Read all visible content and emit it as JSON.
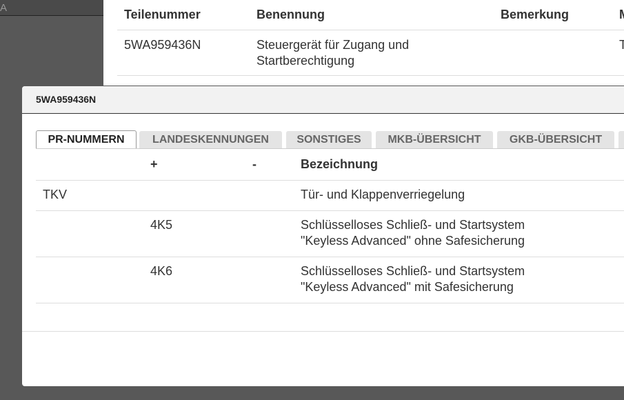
{
  "background_field": {
    "text": "A"
  },
  "background_table": {
    "headers": [
      "Teilenummer",
      "Benennung",
      "Bemerkung",
      "M"
    ],
    "row": {
      "part_number": "5WA959436N",
      "name": [
        "Steuergerät für Zugang und",
        "Startberechtigung"
      ],
      "last": "T"
    }
  },
  "dialog": {
    "title": "5WA959436N",
    "tabs": [
      "PR-NUMMERN",
      "LANDESKENNUNGEN",
      "SONSTIGES",
      "MKB-ÜBERSICHT",
      "GKB-ÜBERSICHT"
    ],
    "table": {
      "headers": {
        "plus": "+",
        "minus": "-",
        "description": "Bezeichnung"
      },
      "rows": [
        {
          "code": "TKV",
          "description": [
            "Tür- und Klappenverriegelung"
          ]
        },
        {
          "plus": "4K5",
          "description": [
            "Schlüsselloses Schließ- und Startsystem",
            "\"Keyless Advanced\" ohne Safesicherung"
          ]
        },
        {
          "plus": "4K6",
          "description": [
            "Schlüsselloses Schließ- und Startsystem",
            "\"Keyless Advanced\" mit Safesicherung"
          ]
        }
      ]
    }
  }
}
